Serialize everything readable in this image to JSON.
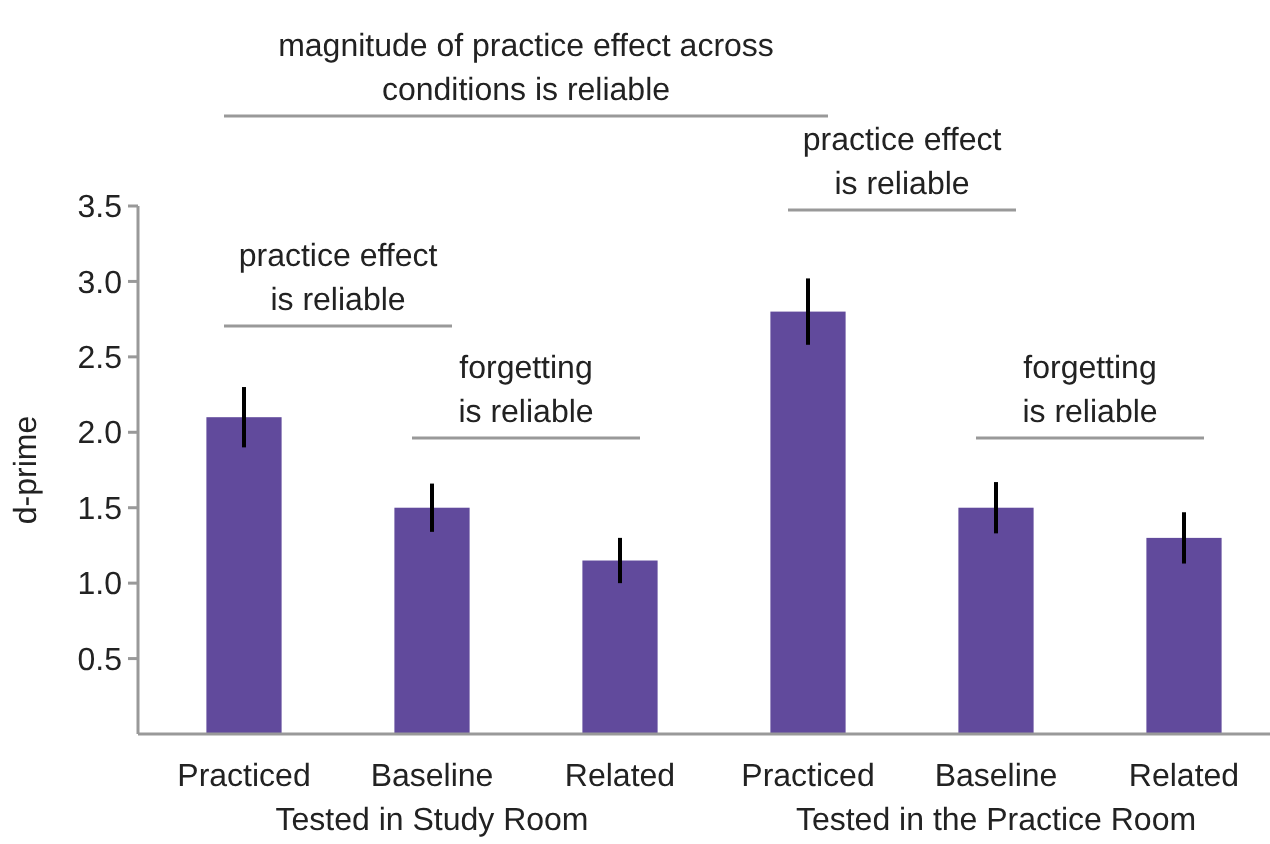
{
  "chart_data": {
    "type": "bar",
    "ylabel": "d-prime",
    "categories": [
      "Practiced",
      "Baseline",
      "Related",
      "Practiced",
      "Baseline",
      "Related"
    ],
    "values": [
      2.1,
      1.5,
      1.15,
      2.8,
      1.5,
      1.3
    ],
    "errors": [
      0.2,
      0.16,
      0.15,
      0.22,
      0.17,
      0.17
    ],
    "color": "#614a9c",
    "ylim": [
      0,
      3.5
    ],
    "yticks": [
      0.5,
      {
        "value": 1,
        "label": "1.0"
      },
      1.5,
      {
        "value": 2,
        "label": "2.0"
      },
      2.5,
      {
        "value": 3,
        "label": "3.0"
      },
      3.5
    ],
    "grid": false,
    "annotations": [
      "magnitude of practice effect across\nconditions is reliable",
      "practice effect\nis reliable",
      "forgetting\nis reliable",
      "practice effect\nis reliable",
      "forgetting\nis reliable",
      "Tested in Study Room",
      "Tested in the Practice Room"
    ]
  }
}
